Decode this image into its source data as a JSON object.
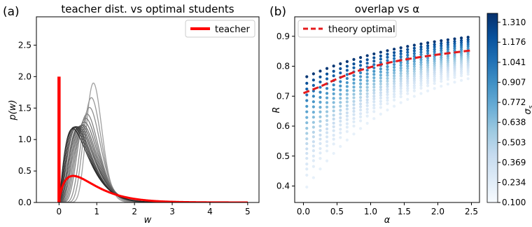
{
  "chart_data": [
    {
      "type": "line",
      "panel_label": "(a)",
      "title": "teacher dist. vs optimal students",
      "xlabel": "w",
      "ylabel": "p(w)",
      "xlim": [
        -0.6,
        5.3
      ],
      "ylim": [
        0,
        2.95
      ],
      "xticks": [
        0,
        1,
        2,
        3,
        4,
        5
      ],
      "yticks": [
        0.0,
        0.5,
        1.0,
        1.5,
        2.0,
        2.5
      ],
      "legend": {
        "placement": "top-right",
        "entries": [
          {
            "label": "teacher",
            "color": "#ff0000"
          }
        ]
      },
      "teacher": {
        "name": "teacher",
        "color": "#ff0000",
        "type": "mixture",
        "spike_at": 0,
        "spike_height": 2.0,
        "curve": "gamma",
        "shape": 1.75,
        "scale": 0.5,
        "weight": 0.5
      },
      "students": {
        "count": 14,
        "curve": "gamma",
        "color_range": [
          "#282828",
          "#a0a0a0"
        ],
        "params": [
          {
            "shape": 2.3,
            "scale": 0.28
          },
          {
            "shape": 2.6,
            "scale": 0.25
          },
          {
            "shape": 2.9,
            "scale": 0.23
          },
          {
            "shape": 3.2,
            "scale": 0.215
          },
          {
            "shape": 3.6,
            "scale": 0.2
          },
          {
            "shape": 4.0,
            "scale": 0.185
          },
          {
            "shape": 4.5,
            "scale": 0.17
          },
          {
            "shape": 5.0,
            "scale": 0.158
          },
          {
            "shape": 5.8,
            "scale": 0.14
          },
          {
            "shape": 6.8,
            "scale": 0.122
          },
          {
            "shape": 8.0,
            "scale": 0.106
          },
          {
            "shape": 10.5,
            "scale": 0.085
          },
          {
            "shape": 14.0,
            "scale": 0.066
          },
          {
            "shape": 20.0,
            "scale": 0.048
          }
        ]
      }
    },
    {
      "type": "scatter",
      "panel_label": "(b)",
      "title": "overlap vs α",
      "xlabel": "α",
      "ylabel": "R",
      "xlim": [
        -0.13,
        2.62
      ],
      "ylim": [
        0.345,
        0.965
      ],
      "xticks": [
        0.0,
        0.5,
        1.0,
        1.5,
        2.0,
        2.5
      ],
      "xtick_labels": [
        "0.0",
        "0.5",
        "1.0",
        "1.5",
        "2.0",
        "2.5"
      ],
      "yticks": [
        0.4,
        0.5,
        0.6,
        0.7,
        0.8,
        0.9
      ],
      "ytick_labels": [
        "0.4",
        "0.5",
        "0.6",
        "0.7",
        "0.8",
        "0.9"
      ],
      "legend": {
        "placement": "top-left",
        "entries": [
          {
            "label": "theory optimal",
            "color": "#e41a1c",
            "style": "dashed"
          }
        ]
      },
      "alpha_values": [
        0.05,
        0.15,
        0.25,
        0.35,
        0.45,
        0.55,
        0.65,
        0.75,
        0.85,
        0.95,
        1.05,
        1.15,
        1.25,
        1.35,
        1.45,
        1.55,
        1.65,
        1.75,
        1.85,
        1.95,
        2.05,
        2.15,
        2.25,
        2.35,
        2.45
      ],
      "sigma_values": [
        0.1,
        0.13,
        0.16,
        0.19,
        0.23,
        0.27,
        0.31,
        0.36,
        0.41,
        0.47,
        0.53,
        0.6,
        0.67,
        0.75,
        0.83,
        0.92,
        1.01,
        1.11,
        1.21,
        1.33
      ],
      "R_model": {
        "top_start": 0.76,
        "top_end": 0.945,
        "top_rate": 0.55,
        "bottom_start": 0.38,
        "bottom_end": 0.83,
        "bottom_rate": 0.75,
        "sigma_exponent": 0.6
      },
      "theory_optimal": {
        "name": "theory optimal",
        "alpha": [
          0.0,
          0.25,
          0.5,
          0.75,
          1.0,
          1.25,
          1.5,
          1.75,
          2.0,
          2.25,
          2.5
        ],
        "R": [
          0.71,
          0.732,
          0.758,
          0.78,
          0.797,
          0.811,
          0.822,
          0.831,
          0.839,
          0.846,
          0.853
        ]
      },
      "colorbar": {
        "label": "σs",
        "label_main": "σ",
        "label_sub": "s",
        "ticks": [
          "1.310",
          "1.176",
          "1.041",
          "0.907",
          "0.772",
          "0.638",
          "0.503",
          "0.369",
          "0.234",
          "0.100"
        ],
        "tick_values": [
          1.31,
          1.176,
          1.041,
          0.907,
          0.772,
          0.638,
          0.503,
          0.369,
          0.234,
          0.1
        ],
        "min": 0.1,
        "max": 1.37,
        "cmap": [
          "#f7fbff",
          "#deebf7",
          "#c6dbef",
          "#9ecae1",
          "#6baed6",
          "#4292c6",
          "#2171b5",
          "#08519c",
          "#08306b"
        ]
      }
    }
  ]
}
